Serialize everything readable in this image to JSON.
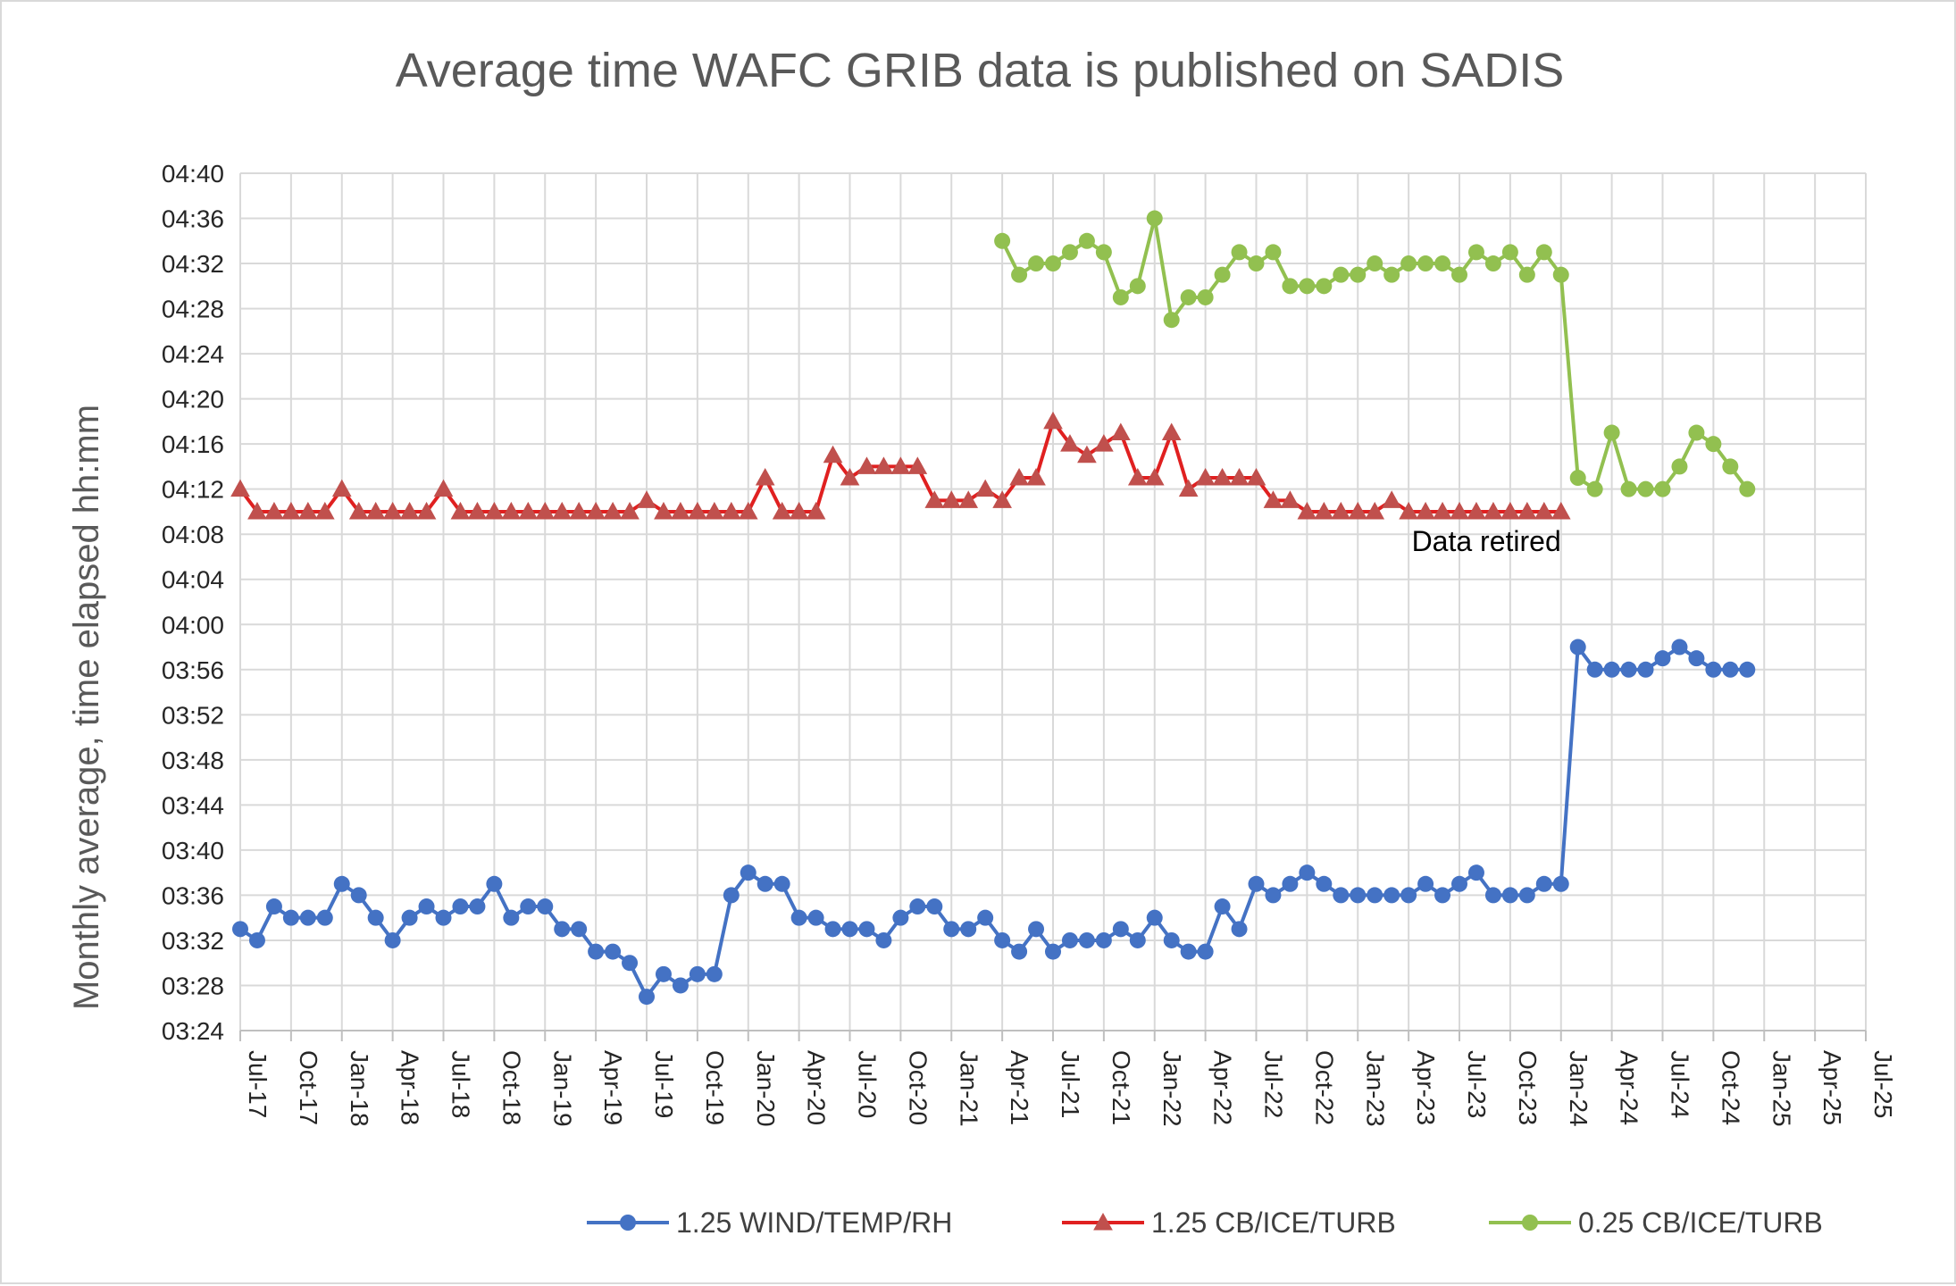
{
  "chart_data": {
    "type": "line",
    "title": "Average time WAFC GRIB data is published on SADIS",
    "ylabel": "Monthly average, time elapsed  hh:mm",
    "xlabel": "",
    "y_ticks": [
      "03:24",
      "03:28",
      "03:32",
      "03:36",
      "03:40",
      "03:44",
      "03:48",
      "03:52",
      "03:56",
      "04:00",
      "04:04",
      "04:08",
      "04:12",
      "04:16",
      "04:20",
      "04:24",
      "04:28",
      "04:32",
      "04:36",
      "04:40"
    ],
    "ylim_minutes": [
      204,
      280
    ],
    "x_ticks": [
      "Jul-17",
      "Oct-17",
      "Jan-18",
      "Apr-18",
      "Jul-18",
      "Oct-18",
      "Jan-19",
      "Apr-19",
      "Jul-19",
      "Oct-19",
      "Jan-20",
      "Apr-20",
      "Jul-20",
      "Oct-20",
      "Jan-21",
      "Apr-21",
      "Jul-21",
      "Oct-21",
      "Jan-22",
      "Apr-22",
      "Jul-22",
      "Oct-22",
      "Jan-23",
      "Apr-23",
      "Jul-23",
      "Oct-23",
      "Jan-24",
      "Apr-24",
      "Jul-24",
      "Oct-24",
      "Jan-25",
      "Apr-25",
      "Jul-25"
    ],
    "x_start": "Jul-17",
    "x_unit": "month",
    "grid": true,
    "legend_position": "bottom",
    "annotations": [
      {
        "text": "Data retired"
      }
    ],
    "series": [
      {
        "name": "1.25 WIND/TEMP/RH",
        "color": "#4472c4",
        "marker": "circle",
        "start": "Jul-17",
        "values_minutes": [
          213,
          212,
          215,
          214,
          214,
          214,
          217,
          216,
          214,
          212,
          214,
          215,
          214,
          215,
          215,
          217,
          214,
          215,
          215,
          213,
          213,
          211,
          211,
          210,
          207,
          209,
          208,
          209,
          209,
          216,
          218,
          217,
          217,
          214,
          214,
          213,
          213,
          213,
          212,
          214,
          215,
          215,
          213,
          213,
          214,
          212,
          211,
          213,
          211,
          212,
          212,
          212,
          213,
          212,
          214,
          212,
          211,
          211,
          215,
          213,
          217,
          216,
          217,
          218,
          217,
          216,
          216,
          216,
          216,
          216,
          217,
          216,
          217,
          218,
          216,
          216,
          216,
          217,
          217,
          238,
          236,
          236,
          236,
          236,
          237,
          238,
          237,
          236,
          236,
          236
        ]
      },
      {
        "name": "1.25 CB/ICE/TURB",
        "color": "#e02020",
        "marker": "triangle",
        "start": "Jul-17",
        "values_minutes": [
          252,
          250,
          250,
          250,
          250,
          250,
          252,
          250,
          250,
          250,
          250,
          250,
          252,
          250,
          250,
          250,
          250,
          250,
          250,
          250,
          250,
          250,
          250,
          250,
          251,
          250,
          250,
          250,
          250,
          250,
          250,
          253,
          250,
          250,
          250,
          255,
          253,
          254,
          254,
          254,
          254,
          251,
          251,
          251,
          252,
          251,
          253,
          253,
          258,
          256,
          255,
          256,
          257,
          253,
          253,
          257,
          252,
          253,
          253,
          253,
          253,
          251,
          251,
          250,
          250,
          250,
          250,
          250,
          251,
          250,
          250,
          250,
          250,
          250,
          250,
          250,
          250,
          250,
          250
        ]
      },
      {
        "name": "0.25 CB/ICE/TURB",
        "color": "#92c050",
        "marker": "circle",
        "start": "Apr-21",
        "values_minutes": [
          274,
          271,
          272,
          272,
          273,
          274,
          273,
          269,
          270,
          276,
          267,
          269,
          269,
          271,
          273,
          272,
          273,
          270,
          270,
          270,
          271,
          271,
          272,
          271,
          272,
          272,
          272,
          271,
          273,
          272,
          273,
          271,
          273,
          271,
          253,
          252,
          257,
          252,
          252,
          252,
          254,
          257,
          256,
          254,
          252
        ]
      }
    ]
  }
}
